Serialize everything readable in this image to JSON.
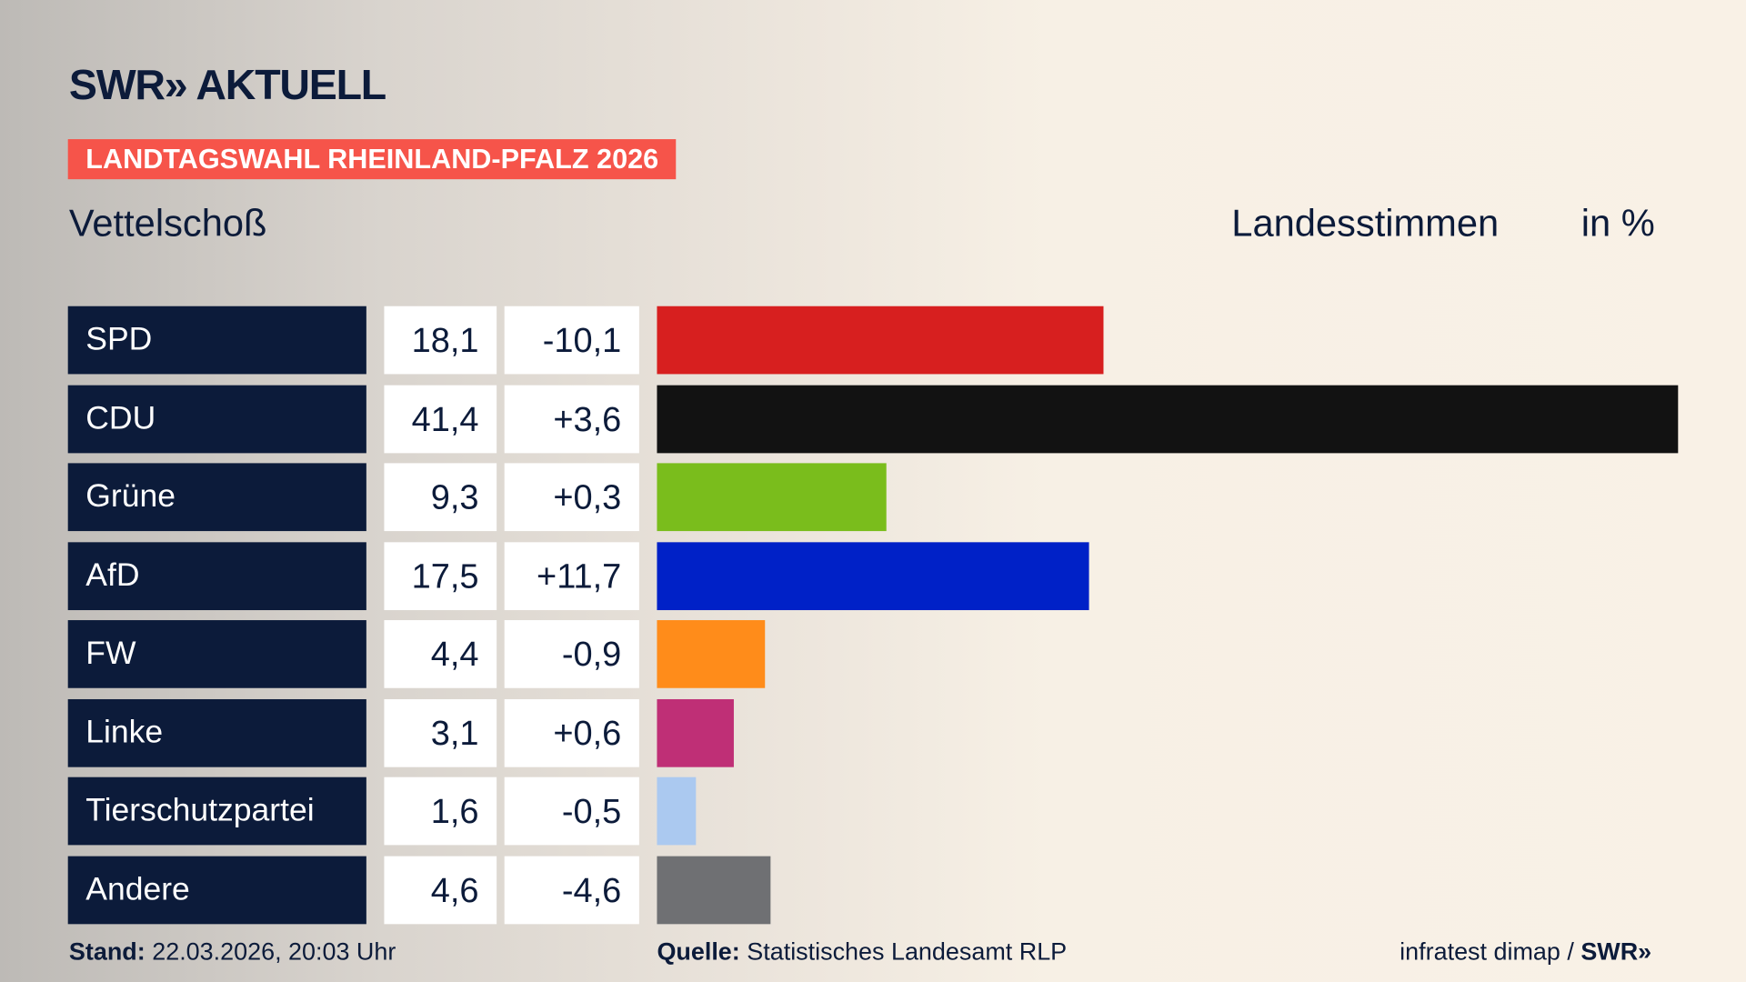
{
  "brand": {
    "logo": "SWR» AKTUELL"
  },
  "tag": "LANDTAGSWAHL RHEINLAND-PFALZ 2026",
  "place": "Vettelschoß",
  "header": {
    "measure": "Landesstimmen",
    "unit": "in %"
  },
  "chart_data": {
    "type": "bar",
    "orientation": "horizontal",
    "categories": [
      "SPD",
      "CDU",
      "Grüne",
      "AfD",
      "FW",
      "Linke",
      "Tierschutzpartei",
      "Andere"
    ],
    "values": [
      18.1,
      41.4,
      9.3,
      17.5,
      4.4,
      3.1,
      1.6,
      4.6
    ],
    "values_label": [
      "18,1",
      "41,4",
      "9,3",
      "17,5",
      "4,4",
      "3,1",
      "1,6",
      "4,6"
    ],
    "changes": [
      -10.1,
      3.6,
      0.3,
      11.7,
      -0.9,
      0.6,
      -0.5,
      -4.6
    ],
    "changes_label": [
      "-10,1",
      "+3,6",
      "+0,3",
      "+11,7",
      "-0,9",
      "+0,6",
      "-0,5",
      "-4,6"
    ],
    "colors": [
      "#d71f1f",
      "#121212",
      "#7abd1c",
      "#0021c7",
      "#ff8c1a",
      "#bf2f76",
      "#abc9f0",
      "#6f7073"
    ],
    "xlim": [
      0,
      41.4
    ]
  },
  "footer": {
    "stand_label": "Stand:",
    "stand": "22.03.2026, 20:03 Uhr",
    "source_label": "Quelle:",
    "source": "Statistisches Landesamt RLP",
    "credit": "infratest dimap / ",
    "credit_brand": "SWR»"
  }
}
